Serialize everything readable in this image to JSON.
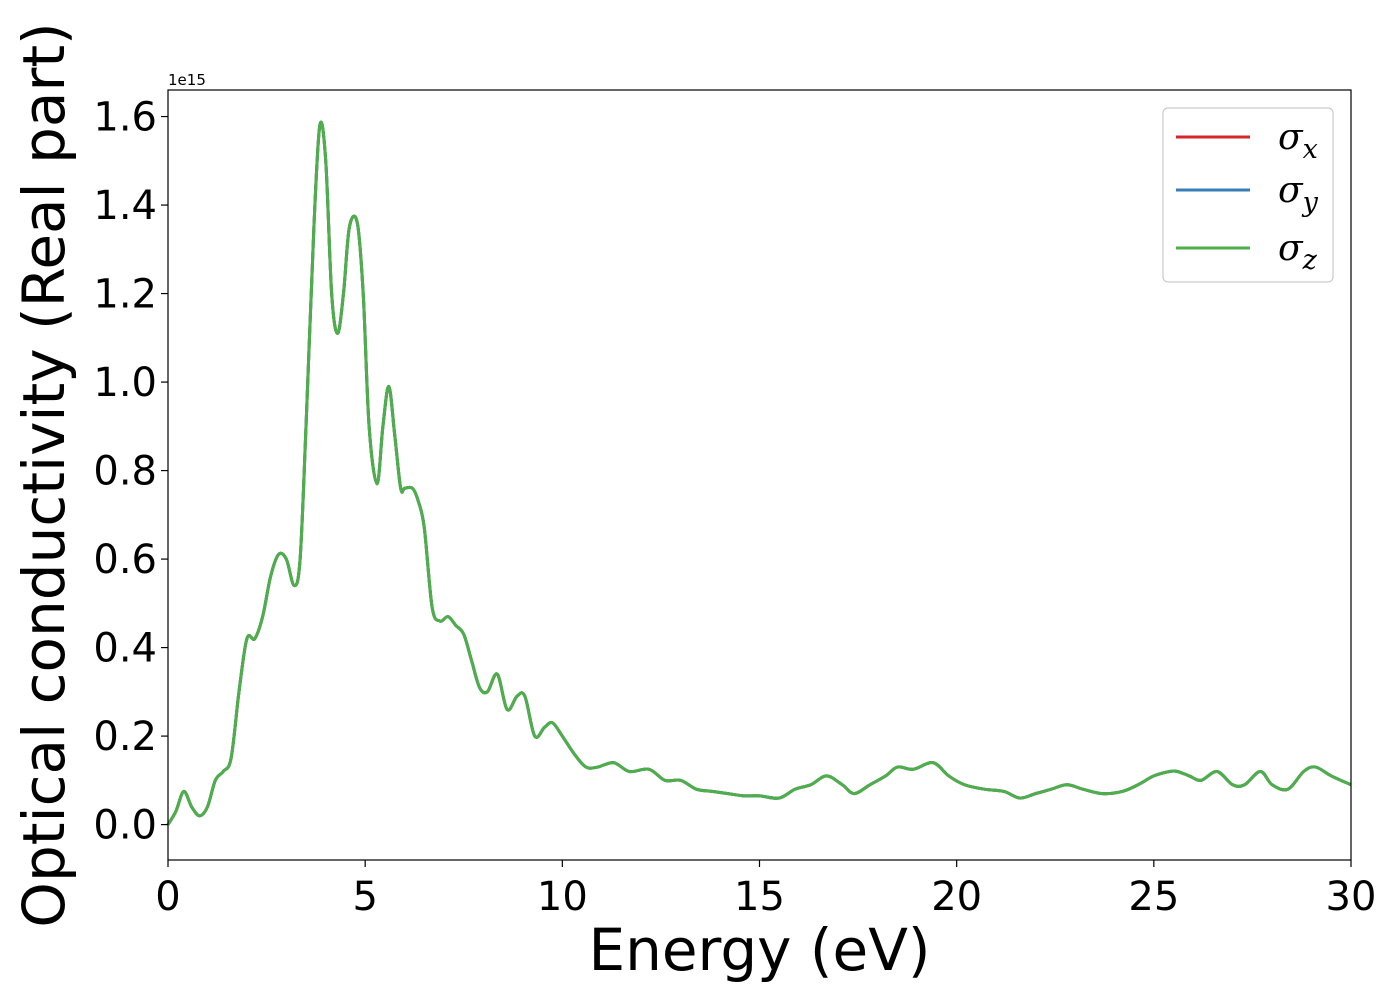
{
  "chart_data": {
    "type": "line",
    "xlabel": "Energy (eV)",
    "ylabel": "Optical conductivity (Real part)",
    "y_offset_label": "1e15",
    "xlim": [
      0,
      30
    ],
    "ylim": [
      -0.08,
      1.66
    ],
    "x_ticks": [
      0,
      5,
      10,
      15,
      20,
      25,
      30
    ],
    "y_ticks": [
      0.0,
      0.2,
      0.4,
      0.6,
      0.8,
      1.0,
      1.2,
      1.4,
      1.6
    ],
    "x_tick_labels": [
      "0",
      "5",
      "10",
      "15",
      "20",
      "25",
      "30"
    ],
    "y_tick_labels": [
      "0.0",
      "0.2",
      "0.4",
      "0.6",
      "0.8",
      "1.0",
      "1.2",
      "1.4",
      "1.6"
    ],
    "grid": false,
    "legend_position": "top-right",
    "x": [
      0,
      0.2,
      0.4,
      0.6,
      0.8,
      1.0,
      1.2,
      1.4,
      1.6,
      1.8,
      2.0,
      2.2,
      2.4,
      2.6,
      2.8,
      3.0,
      3.2,
      3.35,
      3.5,
      3.7,
      3.85,
      4.0,
      4.15,
      4.3,
      4.45,
      4.6,
      4.8,
      4.95,
      5.1,
      5.3,
      5.45,
      5.6,
      5.75,
      5.9,
      6.0,
      6.2,
      6.35,
      6.5,
      6.7,
      6.9,
      7.1,
      7.3,
      7.5,
      7.7,
      7.9,
      8.1,
      8.35,
      8.6,
      8.85,
      9.05,
      9.3,
      9.55,
      9.75,
      10.0,
      10.3,
      10.6,
      10.9,
      11.3,
      11.7,
      12.2,
      12.6,
      13.0,
      13.4,
      13.8,
      14.2,
      14.6,
      15.0,
      15.5,
      15.9,
      16.3,
      16.7,
      17.1,
      17.4,
      17.8,
      18.2,
      18.5,
      18.9,
      19.4,
      19.8,
      20.2,
      20.7,
      21.2,
      21.6,
      22.0,
      22.4,
      22.8,
      23.2,
      23.7,
      24.2,
      24.6,
      25.0,
      25.4,
      25.6,
      25.9,
      26.2,
      26.6,
      27.0,
      27.3,
      27.7,
      28.0,
      28.4,
      28.8,
      29.1,
      29.5,
      30.0
    ],
    "series": [
      {
        "name": "σx",
        "color": "#d62728",
        "values": [
          0.0,
          0.03,
          0.075,
          0.04,
          0.02,
          0.04,
          0.1,
          0.12,
          0.15,
          0.3,
          0.42,
          0.42,
          0.47,
          0.56,
          0.61,
          0.6,
          0.54,
          0.6,
          0.9,
          1.35,
          1.58,
          1.5,
          1.2,
          1.11,
          1.2,
          1.35,
          1.36,
          1.2,
          0.9,
          0.77,
          0.9,
          0.99,
          0.88,
          0.76,
          0.76,
          0.76,
          0.73,
          0.67,
          0.49,
          0.46,
          0.47,
          0.45,
          0.43,
          0.37,
          0.31,
          0.3,
          0.34,
          0.26,
          0.29,
          0.29,
          0.2,
          0.22,
          0.23,
          0.2,
          0.16,
          0.13,
          0.13,
          0.14,
          0.12,
          0.125,
          0.1,
          0.1,
          0.08,
          0.075,
          0.07,
          0.065,
          0.065,
          0.06,
          0.08,
          0.09,
          0.11,
          0.09,
          0.07,
          0.09,
          0.11,
          0.13,
          0.125,
          0.14,
          0.11,
          0.09,
          0.08,
          0.075,
          0.06,
          0.07,
          0.08,
          0.09,
          0.08,
          0.07,
          0.075,
          0.09,
          0.11,
          0.12,
          0.12,
          0.11,
          0.1,
          0.12,
          0.09,
          0.09,
          0.12,
          0.09,
          0.08,
          0.12,
          0.13,
          0.11,
          0.09
        ]
      },
      {
        "name": "σy",
        "color": "#377eb8",
        "values": [
          0.0,
          0.03,
          0.075,
          0.04,
          0.02,
          0.04,
          0.1,
          0.12,
          0.15,
          0.3,
          0.42,
          0.42,
          0.47,
          0.56,
          0.61,
          0.6,
          0.54,
          0.6,
          0.9,
          1.35,
          1.58,
          1.5,
          1.2,
          1.11,
          1.2,
          1.35,
          1.36,
          1.2,
          0.9,
          0.77,
          0.9,
          0.99,
          0.88,
          0.76,
          0.76,
          0.76,
          0.73,
          0.67,
          0.49,
          0.46,
          0.47,
          0.45,
          0.43,
          0.37,
          0.31,
          0.3,
          0.34,
          0.26,
          0.29,
          0.29,
          0.2,
          0.22,
          0.23,
          0.2,
          0.16,
          0.13,
          0.13,
          0.14,
          0.12,
          0.125,
          0.1,
          0.1,
          0.08,
          0.075,
          0.07,
          0.065,
          0.065,
          0.06,
          0.08,
          0.09,
          0.11,
          0.09,
          0.07,
          0.09,
          0.11,
          0.13,
          0.125,
          0.14,
          0.11,
          0.09,
          0.08,
          0.075,
          0.06,
          0.07,
          0.08,
          0.09,
          0.08,
          0.07,
          0.075,
          0.09,
          0.11,
          0.12,
          0.12,
          0.11,
          0.1,
          0.12,
          0.09,
          0.09,
          0.12,
          0.09,
          0.08,
          0.12,
          0.13,
          0.11,
          0.09
        ]
      },
      {
        "name": "σz",
        "color": "#4daf4a",
        "values": [
          0.0,
          0.03,
          0.075,
          0.04,
          0.02,
          0.04,
          0.1,
          0.12,
          0.15,
          0.3,
          0.42,
          0.42,
          0.47,
          0.56,
          0.61,
          0.6,
          0.54,
          0.6,
          0.9,
          1.35,
          1.58,
          1.5,
          1.2,
          1.11,
          1.2,
          1.35,
          1.36,
          1.2,
          0.9,
          0.77,
          0.9,
          0.99,
          0.88,
          0.76,
          0.76,
          0.76,
          0.73,
          0.67,
          0.49,
          0.46,
          0.47,
          0.45,
          0.43,
          0.37,
          0.31,
          0.3,
          0.34,
          0.26,
          0.29,
          0.29,
          0.2,
          0.22,
          0.23,
          0.2,
          0.16,
          0.13,
          0.13,
          0.14,
          0.12,
          0.125,
          0.1,
          0.1,
          0.08,
          0.075,
          0.07,
          0.065,
          0.065,
          0.06,
          0.08,
          0.09,
          0.11,
          0.09,
          0.07,
          0.09,
          0.11,
          0.13,
          0.125,
          0.14,
          0.11,
          0.09,
          0.08,
          0.075,
          0.06,
          0.07,
          0.08,
          0.09,
          0.08,
          0.07,
          0.075,
          0.09,
          0.11,
          0.12,
          0.12,
          0.11,
          0.1,
          0.12,
          0.09,
          0.09,
          0.12,
          0.09,
          0.08,
          0.12,
          0.13,
          0.11,
          0.09
        ]
      }
    ],
    "legend": [
      {
        "symbol": "σ",
        "subscript": "x",
        "color": "#d62728"
      },
      {
        "symbol": "σ",
        "subscript": "y",
        "color": "#377eb8"
      },
      {
        "symbol": "σ",
        "subscript": "z",
        "color": "#4daf4a"
      }
    ]
  }
}
